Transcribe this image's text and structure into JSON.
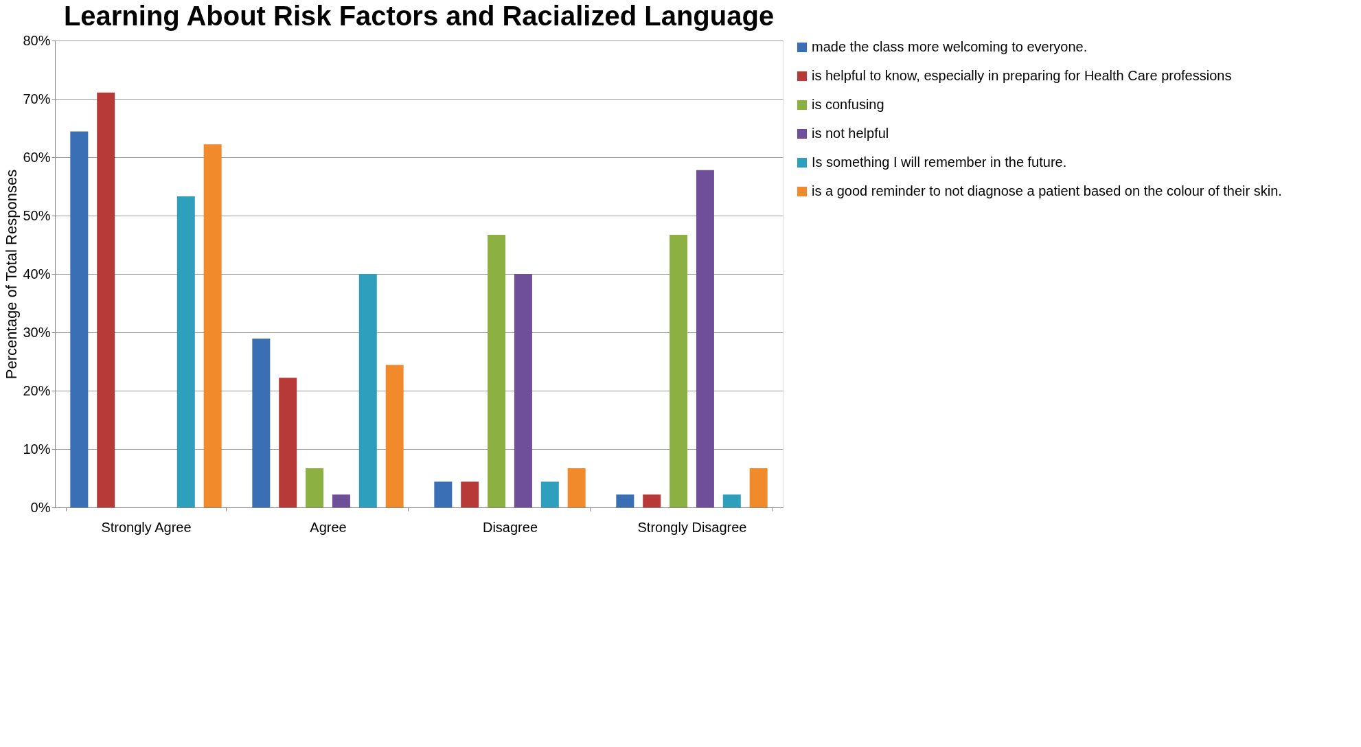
{
  "chart_data": {
    "type": "bar",
    "title": "Learning About Risk Factors and Racialized Language",
    "ylabel": "Percentage of Total Responses",
    "categories": [
      "Strongly Agree",
      "Agree",
      "Disagree",
      "Strongly Disagree"
    ],
    "series": [
      {
        "name": "made the class more welcoming to everyone.",
        "color": "#3a6fb5",
        "values": [
          64.4,
          28.9,
          4.4,
          2.2
        ]
      },
      {
        "name": "is helpful to know, especially in preparing for Health Care professions",
        "color": "#b83a38",
        "values": [
          71.1,
          22.2,
          4.4,
          2.2
        ]
      },
      {
        "name": "is confusing",
        "color": "#8cb042",
        "values": [
          0,
          6.7,
          46.7,
          46.7
        ]
      },
      {
        "name": "is not helpful",
        "color": "#6f4f9a",
        "values": [
          0,
          2.2,
          40,
          57.8
        ]
      },
      {
        "name": "Is something I will remember in the future.",
        "color": "#2e9fbd",
        "values": [
          53.3,
          40,
          4.4,
          2.2
        ]
      },
      {
        "name": "is a good reminder to not diagnose a patient based on the colour of their skin.",
        "color": "#f08a2a",
        "values": [
          62.2,
          24.4,
          6.7,
          6.7
        ]
      }
    ],
    "ylim": [
      0,
      80
    ],
    "yticks": [
      {
        "value": 0,
        "label": "0%"
      },
      {
        "value": 10,
        "label": "10%"
      },
      {
        "value": 20,
        "label": "20%"
      },
      {
        "value": 30,
        "label": "30%"
      },
      {
        "value": 40,
        "label": "40%"
      },
      {
        "value": 50,
        "label": "50%"
      },
      {
        "value": 60,
        "label": "60%"
      },
      {
        "value": 70,
        "label": "70%"
      },
      {
        "value": 80,
        "label": "80%"
      }
    ],
    "grid": "y",
    "legend": "right"
  }
}
